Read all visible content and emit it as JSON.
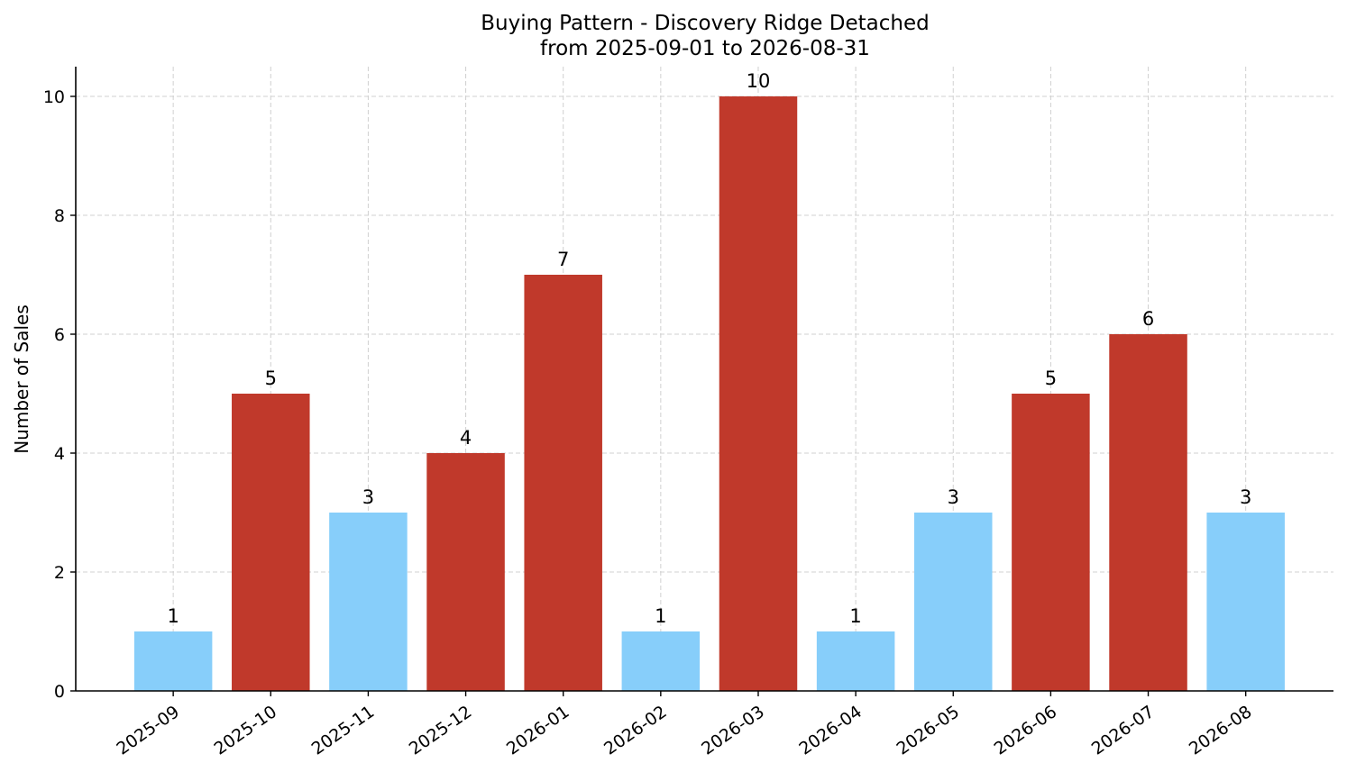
{
  "chart_data": {
    "type": "bar",
    "title": "Buying Pattern - Discovery Ridge Detached",
    "subtitle": "from 2025-09-01 to 2026-08-31",
    "xlabel": "",
    "ylabel": "Number of Sales",
    "categories": [
      "2025-09",
      "2025-10",
      "2025-11",
      "2025-12",
      "2026-01",
      "2026-02",
      "2026-03",
      "2026-04",
      "2026-05",
      "2026-06",
      "2026-07",
      "2026-08"
    ],
    "values": [
      1,
      5,
      3,
      4,
      7,
      1,
      10,
      1,
      3,
      5,
      6,
      3
    ],
    "data_labels": [
      "1",
      "5",
      "3",
      "4",
      "7",
      "1",
      "10",
      "1",
      "3",
      "5",
      "6",
      "3"
    ],
    "ylim": [
      0,
      10.5
    ],
    "yticks": [
      0,
      2,
      4,
      6,
      8,
      10
    ],
    "ytick_labels": [
      "0",
      "2",
      "4",
      "6",
      "8",
      "10"
    ],
    "grid": true,
    "colors": {
      "high": "#c0392b",
      "low": "#87cefa",
      "low_threshold": 3
    }
  }
}
